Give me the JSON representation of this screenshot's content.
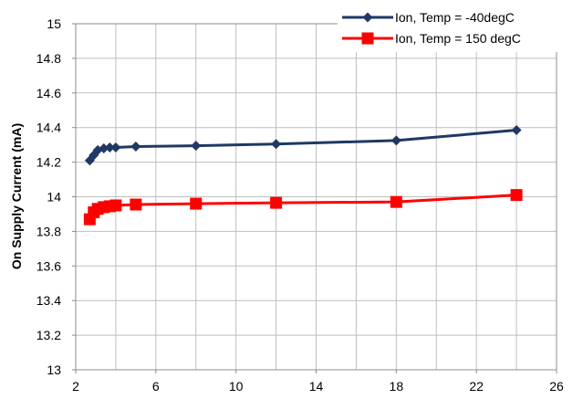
{
  "chart_data": {
    "type": "line",
    "title": "",
    "xlabel": "",
    "ylabel": "On  Supply Current  (mA)",
    "xlim": [
      2,
      26
    ],
    "ylim": [
      13,
      15
    ],
    "xticks": [
      2,
      6,
      10,
      14,
      18,
      22,
      26
    ],
    "yticks": [
      13,
      13.2,
      13.4,
      13.6,
      13.8,
      14,
      14.2,
      14.4,
      14.6,
      14.8,
      15
    ],
    "x_minor_step": 2,
    "grid": true,
    "legend_position": "top-right",
    "series": [
      {
        "name": "Ion, Temp = -40degC",
        "color": "#1f3864",
        "marker": "diamond",
        "x": [
          2.7,
          2.9,
          3.1,
          3.4,
          3.7,
          4.0,
          5.0,
          8.0,
          12.0,
          18.0,
          24.0
        ],
        "y": [
          14.21,
          14.24,
          14.27,
          14.28,
          14.285,
          14.285,
          14.29,
          14.295,
          14.305,
          14.325,
          14.385
        ]
      },
      {
        "name": "Ion, Temp = 150 degC",
        "color": "#ff0000",
        "marker": "square",
        "x": [
          2.7,
          2.9,
          3.1,
          3.4,
          3.7,
          4.0,
          5.0,
          8.0,
          12.0,
          18.0,
          24.0
        ],
        "y": [
          13.87,
          13.91,
          13.93,
          13.94,
          13.945,
          13.95,
          13.955,
          13.96,
          13.965,
          13.97,
          14.01
        ]
      }
    ]
  }
}
